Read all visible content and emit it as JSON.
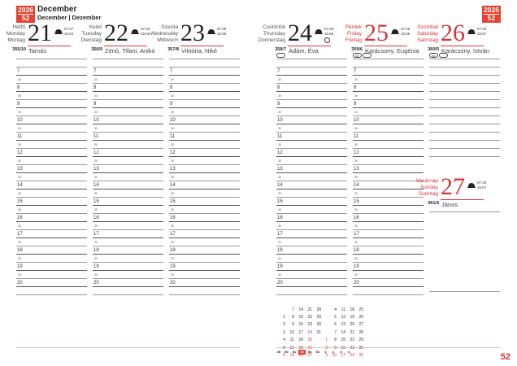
{
  "header": {
    "year": "2026",
    "week": "52",
    "month": "December",
    "month_sub": "December | Dezember"
  },
  "days": [
    {
      "names": [
        "Hétfő",
        "Monday",
        "Montag"
      ],
      "num": "21",
      "sunrise": "07:27",
      "sunset": "15:54",
      "daynum": "355/10",
      "nameday": "Tamás",
      "holiday": false
    },
    {
      "names": [
        "Kedd",
        "Tuesday",
        "Dienstag"
      ],
      "num": "22",
      "sunrise": "07:28",
      "sunset": "15:55",
      "daynum": "356/9",
      "nameday": "Zénó, Tifani, Anikó",
      "holiday": false
    },
    {
      "names": [
        "Szerda",
        "Wednesday",
        "Mittwoch"
      ],
      "num": "23",
      "sunrise": "07:29",
      "sunset": "15:55",
      "daynum": "357/8",
      "nameday": "Viktória, Niké",
      "holiday": false
    },
    {
      "names": [
        "Csütörtök",
        "Thursday",
        "Donnerstag"
      ],
      "num": "24",
      "sunrise": "07:29",
      "sunset": "15:56",
      "daynum": "358/7",
      "nameday": "Ádám, Éva",
      "holiday": false,
      "moon": "full-moon"
    },
    {
      "names": [
        "Péntek",
        "Friday",
        "Freitag"
      ],
      "num": "25",
      "sunrise": "07:29",
      "sunset": "15:56",
      "daynum": "359/6",
      "nameday": "Karácsony, Eugénia",
      "holiday": true
    },
    {
      "names": [
        "Szombat",
        "Saturday",
        "Samstag"
      ],
      "num": "26",
      "sunrise": "07:30",
      "sunset": "15:57",
      "daynum": "360/5",
      "nameday": "Karácsony, István",
      "holiday": true
    },
    {
      "names": [
        "Vasárnap",
        "Sunday",
        "Sonntag"
      ],
      "num": "27",
      "sunrise": "07:30",
      "sunset": "15:57",
      "daynum": "361/4",
      "nameday": "János",
      "holiday": true
    }
  ],
  "hours": [
    "7",
    "8",
    "9",
    "10",
    "11",
    "12",
    "13",
    "14",
    "15",
    "16",
    "17",
    "18",
    "19",
    "20"
  ],
  "half_label": "30",
  "mini_dec": [
    [
      "",
      "7",
      "14",
      "21",
      "28"
    ],
    [
      "1",
      "8",
      "15",
      "22",
      "29"
    ],
    [
      "2",
      "9",
      "16",
      "23",
      "30"
    ],
    [
      "3",
      "10",
      "17",
      "24",
      "31"
    ],
    [
      "4",
      "11",
      "18",
      "25",
      ""
    ],
    [
      "5",
      "12",
      "19",
      "26",
      ""
    ],
    [
      "6",
      "13",
      "20",
      "27",
      ""
    ]
  ],
  "mini_jan": [
    [
      "",
      "4",
      "11",
      "18",
      "25"
    ],
    [
      "",
      "5",
      "12",
      "19",
      "26"
    ],
    [
      "",
      "6",
      "13",
      "20",
      "27"
    ],
    [
      "",
      "7",
      "14",
      "21",
      "28"
    ],
    [
      "1",
      "8",
      "15",
      "22",
      "29"
    ],
    [
      "2",
      "9",
      "16",
      "23",
      "30"
    ],
    [
      "3",
      "10",
      "17",
      "24",
      "31"
    ]
  ],
  "weeks": [
    "49",
    "50",
    "51",
    "52",
    "53",
    "53",
    "1",
    "2",
    "3",
    "4"
  ],
  "current_week": "52",
  "page_number": "52",
  "colors": {
    "accent": "#e8412f",
    "holiday": "#d9323a"
  }
}
